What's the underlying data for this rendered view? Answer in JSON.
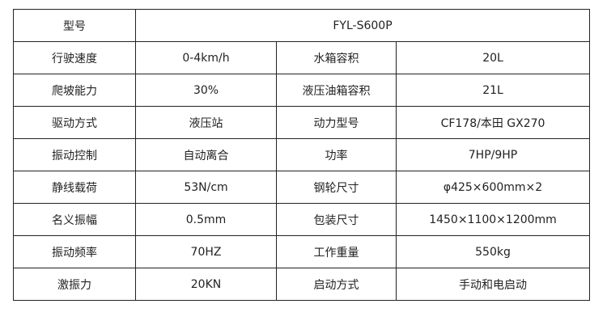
{
  "header": {
    "label": "型号",
    "value": "FYL-S600P"
  },
  "rows": [
    [
      "行驶速度",
      "0-4km/h",
      "水箱容积",
      "20L"
    ],
    [
      "爬坡能力",
      "30%",
      "液压油箱容积",
      "21L"
    ],
    [
      "驱动方式",
      "液压站",
      "动力型号",
      "CF178/本田 GX270"
    ],
    [
      "振动控制",
      "自动离合",
      "功率",
      "7HP/9HP"
    ],
    [
      "静线载荷",
      "53N/cm",
      "钢轮尺寸",
      "φ425×600mm×2"
    ],
    [
      "名义振幅",
      "0.5mm",
      "包装尺寸",
      "1450×1100×1200mm"
    ],
    [
      "振动频率",
      "70HZ",
      "工作重量",
      "550kg"
    ],
    [
      "激振力",
      "20KN",
      "启动方式",
      "手动和电启动"
    ]
  ]
}
